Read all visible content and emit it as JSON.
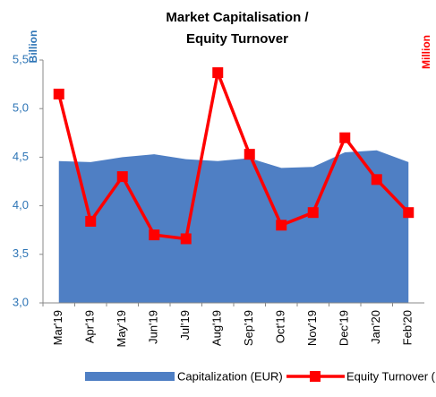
{
  "chart_data": {
    "type": "area-line",
    "title": [
      "Market Capitalisation /",
      "Equity Turnover"
    ],
    "y_label": "Billion",
    "y2_label": "Million",
    "categories": [
      "Mar'19",
      "Apr'19",
      "May'19",
      "Jun'19",
      "Jul'19",
      "Aug'19",
      "Sep'19",
      "Oct'19",
      "Nov'19",
      "Dec'19",
      "Jan'20",
      "Feb'20"
    ],
    "series": [
      {
        "name": "Capitalization (EUR)",
        "type": "area",
        "color": "#4f7fc4",
        "values": [
          4.46,
          4.45,
          4.5,
          4.53,
          4.48,
          4.46,
          4.49,
          4.39,
          4.4,
          4.55,
          4.57,
          4.45
        ]
      },
      {
        "name": "Equity Turnover (EUR)",
        "type": "line",
        "axis": "y2",
        "color": "#ff0000",
        "values": [
          5.15,
          3.84,
          4.3,
          3.7,
          3.66,
          5.37,
          4.53,
          3.8,
          3.93,
          4.7,
          4.27,
          3.93
        ]
      }
    ],
    "ylim": [
      3.0,
      5.5
    ],
    "yticks": [
      {
        "value": 3.0,
        "label": "3,0"
      },
      {
        "value": 3.5,
        "label": "3,5"
      },
      {
        "value": 4.0,
        "label": "4,0"
      },
      {
        "value": 4.5,
        "label": "4,5"
      },
      {
        "value": 5.0,
        "label": "5,0"
      },
      {
        "value": 5.5,
        "label": "5,5"
      }
    ],
    "y2lim": [
      3.0,
      5.5
    ],
    "y_label_color": "#2e75b6",
    "y2_label_color": "#ff0000"
  }
}
